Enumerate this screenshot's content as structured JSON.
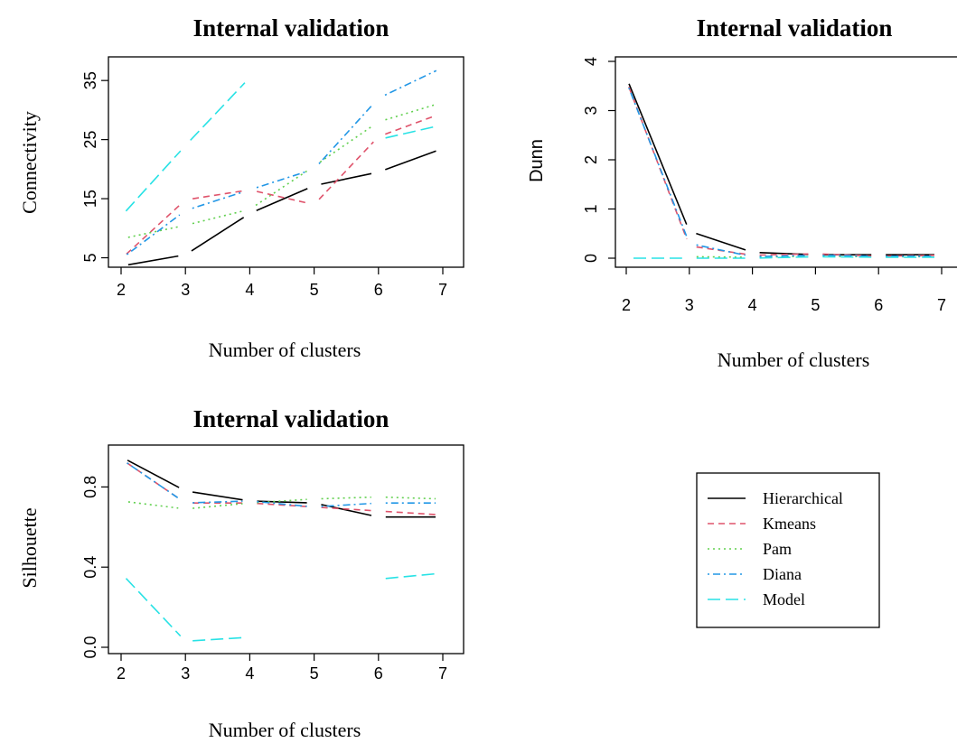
{
  "chart_data": [
    {
      "type": "line",
      "title": "Internal validation",
      "xlabel": "Number of clusters",
      "ylabel": "Connectivity",
      "x": [
        2,
        3,
        4,
        5,
        6,
        7
      ],
      "xlim": [
        2,
        7
      ],
      "ylim": [
        3.4,
        39
      ],
      "yticks": [
        5,
        15,
        25,
        35
      ],
      "yticks_vertical": true,
      "series": [
        {
          "name": "Hierarchical",
          "values": [
            3.6,
            5.5,
            12.5,
            17.2,
            19.5,
            23.5
          ]
        },
        {
          "name": "Kmeans",
          "values": [
            4.8,
            14.8,
            16.5,
            14.0,
            25.5,
            29.5
          ]
        },
        {
          "name": "Pam",
          "values": [
            8.2,
            10.5,
            13.2,
            20.5,
            28.0,
            31.3
          ]
        },
        {
          "name": "Diana",
          "values": [
            4.8,
            13.0,
            16.5,
            20.0,
            32.0,
            37.2
          ]
        },
        {
          "name": "Model",
          "values": [
            12.0,
            24.0,
            35.5,
            null,
            25.0,
            27.5
          ]
        }
      ]
    },
    {
      "type": "line",
      "title": "Internal validation",
      "xlabel": "Number of clusters",
      "ylabel": "Dunn",
      "x": [
        2,
        3,
        4,
        5,
        6,
        7
      ],
      "xlim": [
        2,
        7
      ],
      "ylim": [
        -0.15,
        4.2
      ],
      "yticks": [
        0,
        1,
        2,
        3,
        4
      ],
      "yticks_vertical": true,
      "series": [
        {
          "name": "Hierarchical",
          "values": [
            3.68,
            0.55,
            0.12,
            0.07,
            0.07,
            0.07
          ]
        },
        {
          "name": "Kmeans",
          "values": [
            3.62,
            0.25,
            0.06,
            0.09,
            0.04,
            0.06
          ]
        },
        {
          "name": "Pam",
          "values": [
            null,
            0.03,
            0.02,
            0.04,
            0.03,
            0.03
          ]
        },
        {
          "name": "Diana",
          "values": [
            3.6,
            0.3,
            0.03,
            0.06,
            0.04,
            0.04
          ]
        },
        {
          "name": "Model",
          "values": [
            0.0,
            0.0,
            0.0,
            0.03,
            0.02,
            0.02
          ]
        }
      ]
    },
    {
      "type": "line",
      "title": "Internal validation",
      "xlabel": "Number of clusters",
      "ylabel": "Silhouette",
      "x": [
        2,
        3,
        4,
        5,
        6,
        7
      ],
      "xlim": [
        2,
        7
      ],
      "ylim": [
        -0.03,
        0.97
      ],
      "yticks": [
        0.0,
        0.4,
        0.8
      ],
      "ytick_labels": [
        "0.0",
        "0.4",
        "0.8"
      ],
      "yticks_vertical": true,
      "series": [
        {
          "name": "Hierarchical",
          "values": [
            0.95,
            0.78,
            0.73,
            0.72,
            0.65,
            0.65
          ]
        },
        {
          "name": "Kmeans",
          "values": [
            0.94,
            0.72,
            0.72,
            0.7,
            0.68,
            0.66
          ]
        },
        {
          "name": "Pam",
          "values": [
            0.73,
            0.69,
            0.72,
            0.74,
            0.75,
            0.74
          ]
        },
        {
          "name": "Diana",
          "values": [
            0.94,
            0.72,
            0.73,
            0.7,
            0.72,
            0.72
          ]
        },
        {
          "name": "Model",
          "values": [
            0.37,
            0.03,
            0.05,
            null,
            0.34,
            0.37
          ]
        }
      ]
    }
  ],
  "legend": {
    "entries": [
      "Hierarchical",
      "Kmeans",
      "Pam",
      "Diana",
      "Model"
    ]
  },
  "series_styles": {
    "Hierarchical": {
      "color": "#000000",
      "dash": "solid"
    },
    "Kmeans": {
      "color": "#DF536B",
      "dash": "dashed"
    },
    "Pam": {
      "color": "#61D04F",
      "dash": "dotted"
    },
    "Diana": {
      "color": "#2297E6",
      "dash": "dotdash"
    },
    "Model": {
      "color": "#28E2E5",
      "dash": "longdash"
    }
  }
}
